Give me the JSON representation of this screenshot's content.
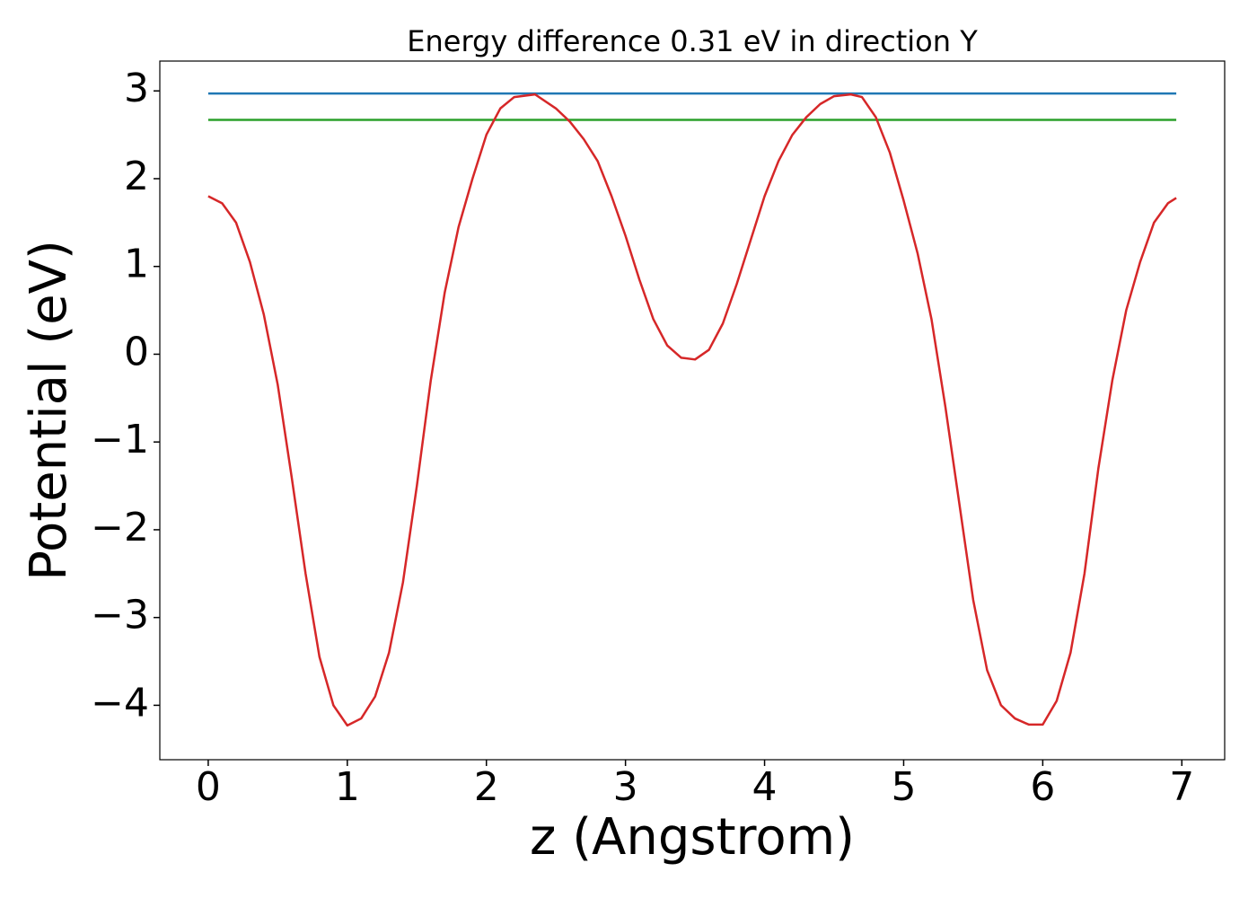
{
  "chart_data": {
    "type": "line",
    "title": "Energy difference 0.31 eV in direction Y",
    "xlabel": "z (Angstrom)",
    "ylabel": "Potential (eV)",
    "xlim": [
      -0.348,
      7.308
    ],
    "ylim": [
      -4.62,
      3.34
    ],
    "xticks": [
      0,
      1,
      2,
      3,
      4,
      5,
      6,
      7
    ],
    "yticks": [
      {
        "value": -4,
        "label": "−4"
      },
      {
        "value": -3,
        "label": "−3"
      },
      {
        "value": -2,
        "label": "−2"
      },
      {
        "value": -1,
        "label": "−1"
      },
      0,
      1,
      2,
      3
    ],
    "series": [
      {
        "color": "#1f77b4",
        "x": [
          0,
          6.96
        ],
        "values": [
          2.97,
          2.97
        ]
      },
      {
        "color": "#2ca02c",
        "x": [
          0,
          6.96
        ],
        "values": [
          2.67,
          2.67
        ]
      },
      {
        "color": "#d62728",
        "x": [
          0,
          0.1,
          0.2,
          0.3,
          0.4,
          0.5,
          0.6,
          0.7,
          0.8,
          0.9,
          1.0,
          1.1,
          1.2,
          1.3,
          1.4,
          1.5,
          1.6,
          1.7,
          1.8,
          1.9,
          2.0,
          2.1,
          2.2,
          2.35,
          2.5,
          2.6,
          2.7,
          2.8,
          2.9,
          3.0,
          3.1,
          3.2,
          3.3,
          3.4,
          3.5,
          3.6,
          3.7,
          3.8,
          3.9,
          4.0,
          4.1,
          4.2,
          4.3,
          4.4,
          4.5,
          4.62,
          4.7,
          4.8,
          4.9,
          5.0,
          5.1,
          5.2,
          5.3,
          5.4,
          5.5,
          5.6,
          5.7,
          5.8,
          5.9,
          6.0,
          6.1,
          6.2,
          6.3,
          6.4,
          6.5,
          6.6,
          6.7,
          6.8,
          6.9,
          6.96
        ],
        "values": [
          1.8,
          1.72,
          1.5,
          1.05,
          0.45,
          -0.35,
          -1.4,
          -2.5,
          -3.45,
          -4.0,
          -4.23,
          -4.15,
          -3.9,
          -3.4,
          -2.6,
          -1.5,
          -0.3,
          0.7,
          1.45,
          2.0,
          2.5,
          2.8,
          2.93,
          2.96,
          2.8,
          2.65,
          2.45,
          2.2,
          1.8,
          1.35,
          0.85,
          0.4,
          0.1,
          -0.04,
          -0.06,
          0.05,
          0.35,
          0.8,
          1.3,
          1.8,
          2.2,
          2.5,
          2.7,
          2.85,
          2.94,
          2.96,
          2.93,
          2.7,
          2.3,
          1.75,
          1.15,
          0.4,
          -0.6,
          -1.7,
          -2.8,
          -3.6,
          -4.0,
          -4.15,
          -4.22,
          -4.22,
          -3.95,
          -3.4,
          -2.5,
          -1.3,
          -0.3,
          0.5,
          1.05,
          1.5,
          1.72,
          1.78
        ]
      }
    ]
  }
}
